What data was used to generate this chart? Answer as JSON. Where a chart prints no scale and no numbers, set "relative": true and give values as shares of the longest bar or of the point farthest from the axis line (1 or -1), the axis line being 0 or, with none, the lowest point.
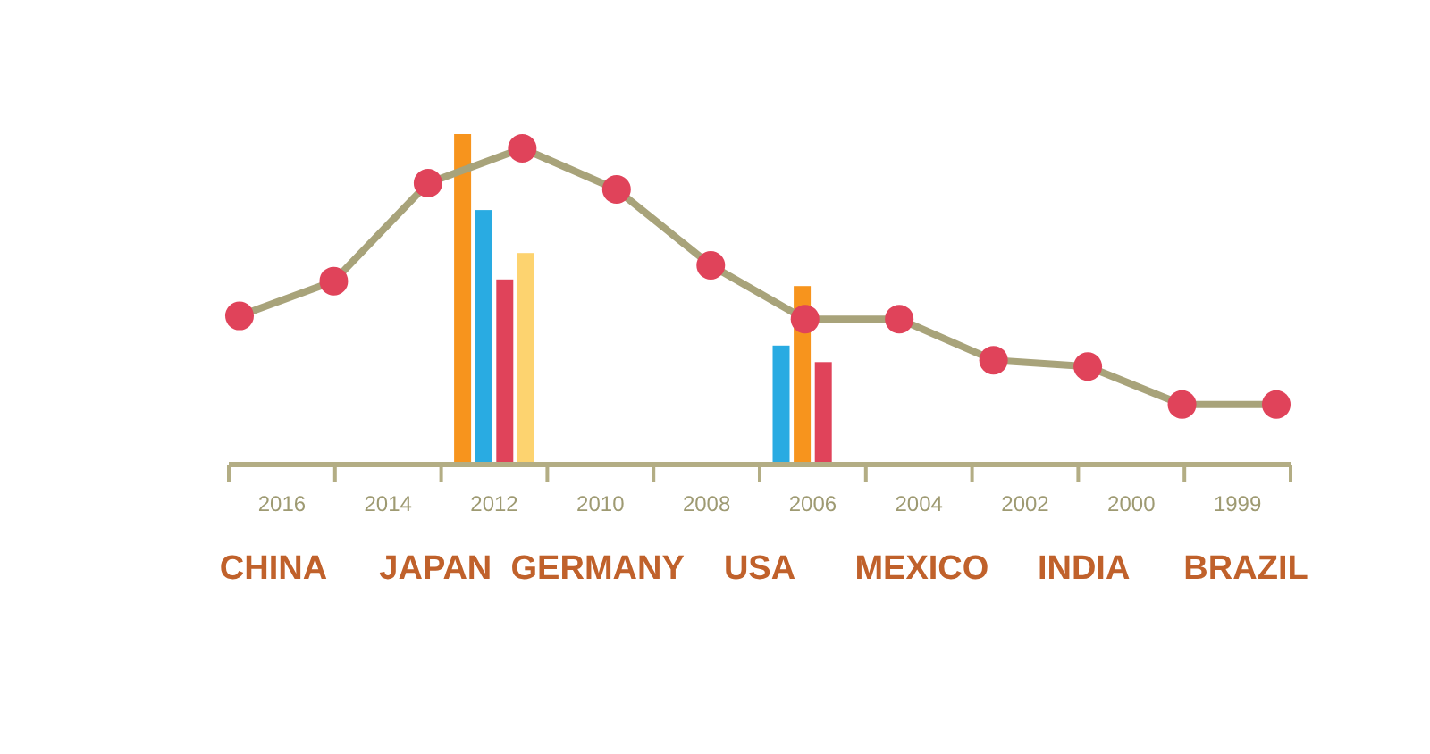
{
  "chart_data": [
    {
      "type": "bar",
      "relative": true,
      "categories": [
        "2016",
        "2014",
        "2012",
        "2010",
        "2008",
        "2006",
        "2004",
        "2002",
        "2000",
        "1999"
      ],
      "series": [
        {
          "values": [
            null,
            null,
            1.0,
            null,
            null,
            0.36,
            null,
            null,
            null,
            null
          ],
          "colors": [
            null,
            null,
            "#f7941d",
            null,
            null,
            "#29abe2",
            null,
            null,
            null,
            null
          ]
        },
        {
          "values": [
            null,
            null,
            0.77,
            null,
            null,
            0.54,
            null,
            null,
            null,
            null
          ],
          "colors": [
            null,
            null,
            "#29abe2",
            null,
            null,
            "#f7941d",
            null,
            null,
            null,
            null
          ]
        },
        {
          "values": [
            null,
            null,
            0.56,
            null,
            null,
            0.31,
            null,
            null,
            null,
            null
          ],
          "colors": [
            null,
            null,
            "#e0435a",
            null,
            null,
            "#e0435a",
            null,
            null,
            null,
            null
          ]
        },
        {
          "values": [
            null,
            null,
            0.64,
            null,
            null,
            null,
            null,
            null,
            null,
            null
          ],
          "colors": [
            null,
            null,
            "#fdd36f",
            null,
            null,
            null,
            null,
            null,
            null,
            null
          ]
        }
      ],
      "annotations": [
        "CHINA",
        "JAPAN",
        "GERMANY",
        "USA",
        "MEXICO",
        "INDIA",
        "BRAZIL"
      ]
    },
    {
      "type": "line",
      "relative": true,
      "categories": [
        null,
        null,
        null,
        null,
        null,
        null,
        null,
        null,
        null,
        null,
        null,
        null
      ],
      "marker": "circle",
      "series": [
        {
          "color": "#a8a37a",
          "values": [
            0.47,
            0.58,
            0.89,
            1.0,
            0.87,
            0.63,
            0.46,
            0.46,
            0.33,
            0.31,
            0.19,
            0.19
          ]
        }
      ]
    }
  ]
}
